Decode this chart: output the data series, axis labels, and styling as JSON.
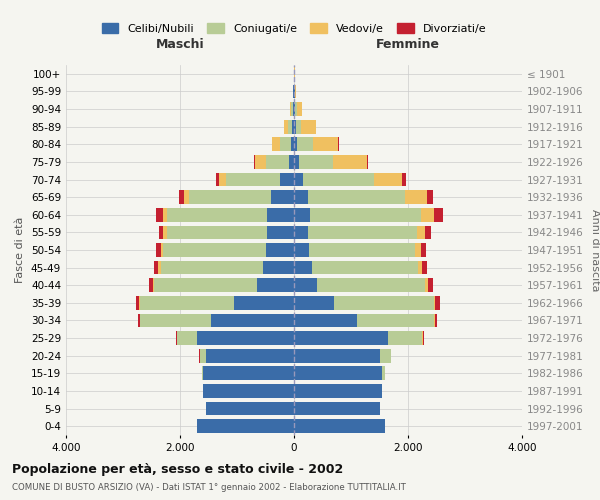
{
  "age_groups": [
    "0-4",
    "5-9",
    "10-14",
    "15-19",
    "20-24",
    "25-29",
    "30-34",
    "35-39",
    "40-44",
    "45-49",
    "50-54",
    "55-59",
    "60-64",
    "65-69",
    "70-74",
    "75-79",
    "80-84",
    "85-89",
    "90-94",
    "95-99",
    "100+"
  ],
  "birth_years": [
    "1997-2001",
    "1992-1996",
    "1987-1991",
    "1982-1986",
    "1977-1981",
    "1972-1976",
    "1967-1971",
    "1962-1966",
    "1957-1961",
    "1952-1956",
    "1947-1951",
    "1942-1946",
    "1937-1941",
    "1932-1936",
    "1927-1931",
    "1922-1926",
    "1917-1921",
    "1912-1916",
    "1907-1911",
    "1902-1906",
    "≤ 1901"
  ],
  "male": {
    "celibi": [
      1700,
      1550,
      1600,
      1600,
      1550,
      1700,
      1450,
      1050,
      650,
      540,
      490,
      480,
      480,
      400,
      250,
      80,
      50,
      30,
      20,
      10,
      5
    ],
    "coniugati": [
      0,
      0,
      0,
      20,
      100,
      350,
      1250,
      1650,
      1800,
      1800,
      1800,
      1750,
      1750,
      1450,
      950,
      420,
      200,
      80,
      30,
      10,
      2
    ],
    "vedovi": [
      0,
      0,
      0,
      0,
      5,
      10,
      10,
      20,
      30,
      40,
      50,
      60,
      70,
      80,
      120,
      180,
      130,
      60,
      20,
      5,
      1
    ],
    "divorziati": [
      0,
      0,
      0,
      0,
      5,
      10,
      30,
      60,
      70,
      80,
      80,
      80,
      120,
      80,
      50,
      20,
      10,
      5,
      2,
      0,
      0
    ]
  },
  "female": {
    "nubili": [
      1600,
      1500,
      1550,
      1550,
      1500,
      1650,
      1100,
      700,
      400,
      320,
      270,
      250,
      280,
      250,
      150,
      80,
      50,
      30,
      20,
      10,
      5
    ],
    "coniugate": [
      0,
      0,
      0,
      40,
      200,
      600,
      1350,
      1750,
      1900,
      1850,
      1850,
      1900,
      1950,
      1700,
      1250,
      600,
      280,
      100,
      40,
      10,
      2
    ],
    "vedove": [
      0,
      0,
      0,
      0,
      5,
      10,
      15,
      30,
      50,
      70,
      100,
      150,
      230,
      380,
      500,
      600,
      450,
      250,
      80,
      15,
      2
    ],
    "divorziate": [
      0,
      0,
      0,
      0,
      5,
      20,
      50,
      80,
      80,
      90,
      100,
      100,
      150,
      100,
      60,
      25,
      15,
      5,
      2,
      0,
      0
    ]
  },
  "colors": {
    "celibi_nubili": "#3a6ca8",
    "coniugati": "#b8cc96",
    "vedovi": "#f0c060",
    "divorziati": "#c42030"
  },
  "xlim": 4000,
  "title": "Popolazione per età, sesso e stato civile - 2002",
  "subtitle": "COMUNE DI BUSTO ARSIZIO (VA) - Dati ISTAT 1° gennaio 2002 - Elaborazione TUTTITALIA.IT",
  "ylabel_left": "Fasce di età",
  "ylabel_right": "Anni di nascita",
  "xlabel_left": "Maschi",
  "xlabel_right": "Femmine",
  "legend_labels": [
    "Celibi/Nubili",
    "Coniugati/e",
    "Vedovi/e",
    "Divorziati/e"
  ],
  "bg_color": "#f5f5f0",
  "grid_color": "#cccccc"
}
